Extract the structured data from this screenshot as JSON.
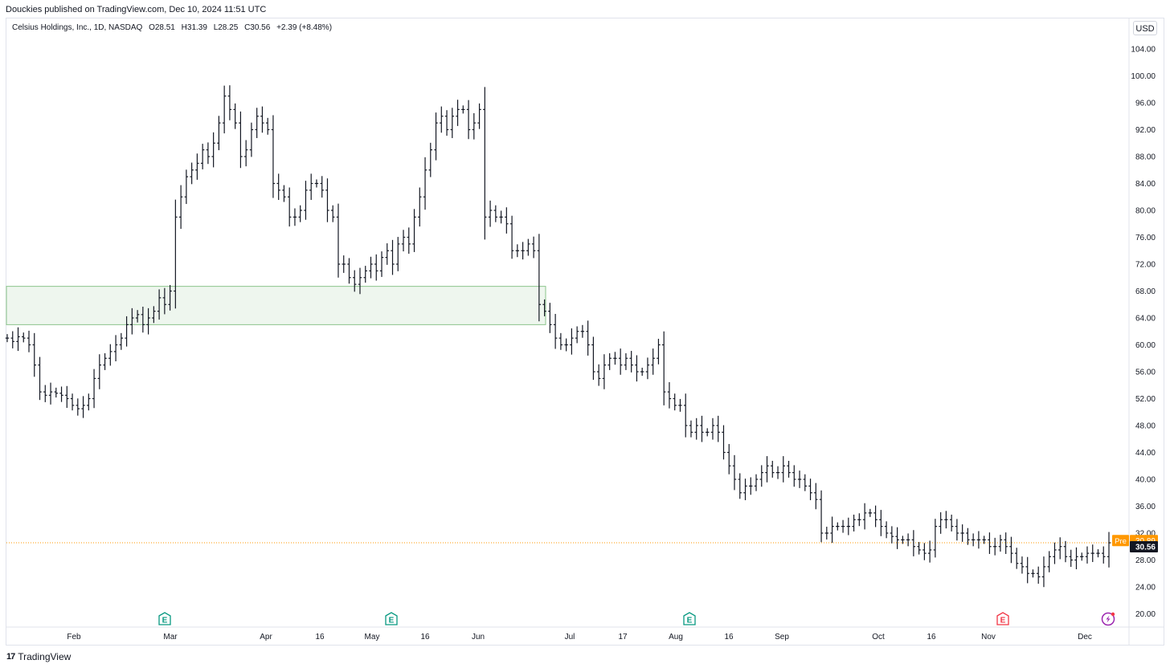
{
  "publish_line": "Douckies published on TradingView.com, Dec 10, 2024 11:51 UTC",
  "legend": {
    "symbol": "Celsius Holdings, Inc., 1D, NASDAQ",
    "open": "O28.51",
    "high": "H31.39",
    "low": "L28.25",
    "close": "C30.56",
    "change": "+2.39 (+8.48%)"
  },
  "currency_button": "USD",
  "footer_brand": "TradingView",
  "colors": {
    "bars": "#131722",
    "zone_fill": "#eef6ee",
    "zone_border": "#8bc48b",
    "pre_badge": "#ff9800",
    "last_badge": "#131722",
    "earnings_green": "#089981",
    "earnings_red": "#f23645",
    "dividend_purple": "#9c27b0"
  },
  "chart_data": {
    "type": "ohlc",
    "ylim": [
      18.4,
      107.0
    ],
    "y_ticks": [
      20,
      24,
      28,
      32,
      36,
      40,
      44,
      48,
      52,
      56,
      60,
      64,
      68,
      72,
      76,
      80,
      84,
      88,
      92,
      96,
      100,
      104
    ],
    "x_ticks": [
      "Feb",
      "Mar",
      "Apr",
      "16",
      "May",
      "16",
      "Jun",
      "Jul",
      "17",
      "Aug",
      "16",
      "Sep",
      "Oct",
      "16",
      "Nov",
      "Dec"
    ],
    "pre_market": {
      "label": "Pre",
      "value": 30.89
    },
    "last_price": 30.56,
    "zone": {
      "low": 63.0,
      "high": 68.7
    },
    "earnings_markers": [
      {
        "date": "Feb 29",
        "type": "earnings",
        "label": "E"
      },
      {
        "date": "May 07",
        "type": "earnings",
        "label": "E"
      },
      {
        "date": "Aug 06",
        "type": "earnings",
        "label": "E"
      },
      {
        "date": "Nov 06",
        "type": "earnings-miss",
        "label": "E"
      },
      {
        "date": "Dec 06",
        "type": "dividend-split",
        "label": ""
      }
    ],
    "closes": [
      61,
      60.5,
      61.2,
      61,
      60,
      57,
      53,
      52.5,
      53,
      52.8,
      52.5,
      52,
      51,
      50.5,
      51,
      52,
      55,
      57,
      58,
      59,
      60,
      61,
      63,
      64,
      64.5,
      63,
      64,
      65,
      67,
      66,
      68,
      79,
      82,
      85,
      86,
      87,
      89,
      88,
      90,
      93,
      97,
      95,
      93,
      88,
      89,
      92,
      94,
      93,
      92,
      84,
      83,
      82,
      79,
      79,
      80,
      83,
      84,
      84,
      83,
      80,
      79,
      72,
      72,
      70,
      69,
      70,
      71,
      72,
      71,
      73,
      74,
      72,
      75,
      76,
      75,
      79,
      82,
      86,
      89,
      93,
      94,
      92,
      94,
      95,
      95,
      92,
      93,
      95,
      79,
      80,
      79,
      79,
      78,
      74,
      74,
      74,
      75,
      74,
      66,
      65,
      63,
      61,
      60,
      60,
      61,
      62,
      62,
      60,
      56,
      55,
      57,
      58,
      58,
      57,
      58,
      57,
      56,
      56,
      57,
      58,
      60,
      53,
      52,
      51,
      51,
      48,
      47,
      48,
      47,
      47,
      48,
      47,
      44,
      42,
      40,
      38,
      39,
      39,
      40,
      41,
      42,
      41,
      41,
      42,
      41,
      40,
      40,
      39,
      38,
      37,
      32,
      32,
      33,
      33,
      33,
      33,
      34,
      34,
      35,
      35,
      34,
      33,
      32,
      31.5,
      31,
      31,
      31,
      30,
      29.5,
      29,
      29.5,
      33,
      34,
      34,
      33,
      32,
      32,
      31,
      31,
      31,
      31,
      30,
      30,
      31,
      30,
      29,
      27.5,
      27,
      26,
      26,
      25.5,
      27,
      28.5,
      29.5,
      30,
      28.5,
      28,
      28.5,
      28.5,
      29,
      29,
      29,
      28.5,
      30.56
    ]
  }
}
